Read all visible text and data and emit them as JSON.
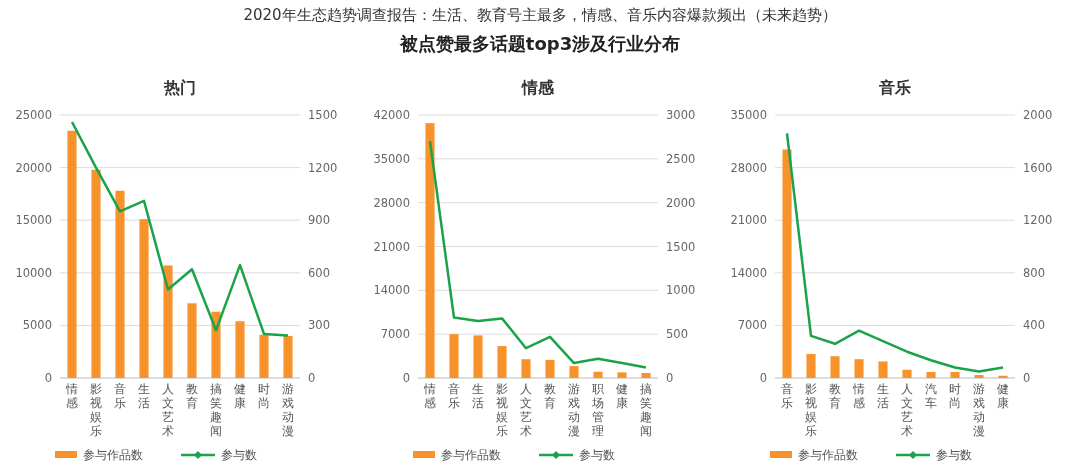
{
  "chart_data": [
    {
      "type": "bar",
      "title": "热门",
      "annotations": [
        "被点赞最多话题top3涉及行业分布"
      ],
      "categories": [
        "情感",
        "影视娱乐",
        "音乐",
        "生活",
        "人文艺术",
        "教育",
        "搞笑趣闻",
        "健康",
        "时尚",
        "游戏动漫"
      ],
      "series": [
        {
          "name": "参与作品数",
          "color": "#f7932a",
          "values": [
            23500,
            19800,
            17800,
            15100,
            10700,
            7100,
            6300,
            5400,
            4100,
            4000
          ]
        },
        {
          "name": "参与数",
          "type": "line",
          "axis": "y2",
          "color": "#1aa34a",
          "values": [
            1460,
            1200,
            950,
            1010,
            505,
            620,
            272,
            644,
            251,
            242
          ]
        }
      ],
      "ylim": [
        0,
        25000
      ],
      "yticks": [
        0,
        5000,
        10000,
        15000,
        20000,
        25000
      ],
      "y2lim": [
        0,
        1500
      ],
      "y2ticks": [
        0,
        300,
        600,
        900,
        1200,
        1500
      ],
      "grid": "y",
      "legend": "bottom"
    },
    {
      "type": "bar",
      "title": "情感",
      "annotations": [
        "2020年生态趋势调查报告：生活、教育号主最多，情感、音乐内容爆款频出（未来趋势）"
      ],
      "categories": [
        "情感",
        "音乐",
        "生活",
        "影视娱乐",
        "人文艺术",
        "教育",
        "游戏动漫",
        "职场管理",
        "健康",
        "搞笑趣闻"
      ],
      "series": [
        {
          "name": "参与作品数",
          "color": "#f7932a",
          "values": [
            40700,
            7000,
            6800,
            5100,
            3000,
            2900,
            1900,
            1000,
            900,
            800
          ]
        },
        {
          "name": "参与数",
          "type": "line",
          "axis": "y2",
          "color": "#1aa34a",
          "values": [
            2700,
            690,
            650,
            680,
            340,
            470,
            170,
            220,
            170,
            120
          ]
        }
      ],
      "ylim": [
        0,
        42000
      ],
      "yticks": [
        0,
        7000,
        14000,
        21000,
        28000,
        35000,
        42000
      ],
      "y2lim": [
        0,
        3000
      ],
      "y2ticks": [
        0,
        500,
        1000,
        1500,
        2000,
        2500,
        3000
      ],
      "grid": "y",
      "legend": "bottom"
    },
    {
      "type": "bar",
      "title": "音乐",
      "categories": [
        "音乐",
        "影视娱乐",
        "教育",
        "情感",
        "生活",
        "人文艺术",
        "汽车",
        "时尚",
        "游戏动漫",
        "健康"
      ],
      "series": [
        {
          "name": "参与作品数",
          "color": "#f7932a",
          "values": [
            30400,
            3200,
            2900,
            2500,
            2200,
            1100,
            800,
            800,
            400,
            300
          ]
        },
        {
          "name": "参与数",
          "type": "line",
          "axis": "y2",
          "color": "#1aa34a",
          "values": [
            1860,
            320,
            260,
            360,
            280,
            200,
            135,
            80,
            50,
            80
          ]
        }
      ],
      "ylim": [
        0,
        35000
      ],
      "yticks": [
        0,
        7000,
        14000,
        21000,
        28000,
        35000
      ],
      "y2lim": [
        0,
        2000
      ],
      "y2ticks": [
        0,
        400,
        800,
        1200,
        1600,
        2000
      ],
      "grid": "y",
      "legend": "bottom"
    }
  ]
}
